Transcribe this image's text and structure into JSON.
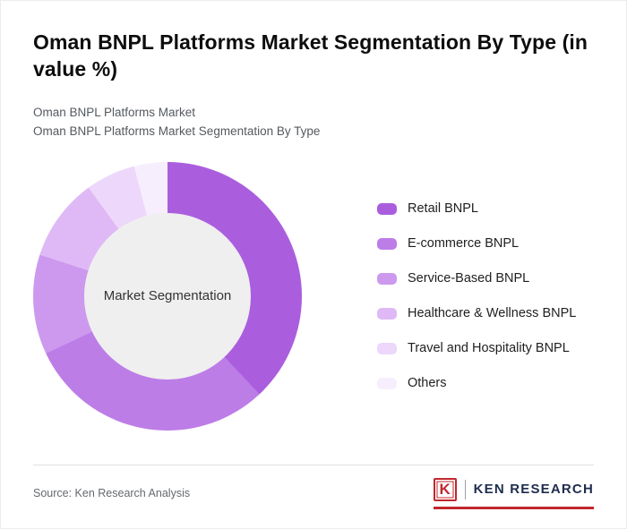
{
  "header": {
    "title": "Oman BNPL Platforms Market Segmentation By Type (in value %)",
    "subtitle1": "Oman BNPL Platforms Market",
    "subtitle2": "Oman BNPL Platforms Market Segmentation By Type"
  },
  "chart_data": {
    "type": "pie",
    "title": "Oman BNPL Platforms Market Segmentation By Type (in value %)",
    "center_label": "Market Segmentation",
    "legend_position": "right",
    "start_angle_deg": 0,
    "direction": "clockwise",
    "series": [
      {
        "name": "Retail BNPL",
        "value": 38,
        "color": "#aa5ede"
      },
      {
        "name": "E-commerce BNPL",
        "value": 30,
        "color": "#bd7de7"
      },
      {
        "name": "Service-Based BNPL",
        "value": 12,
        "color": "#cd99ee"
      },
      {
        "name": "Healthcare & Wellness BNPL",
        "value": 10,
        "color": "#dfb9f5"
      },
      {
        "name": "Travel and Hospitality BNPL",
        "value": 6,
        "color": "#edd7fa"
      },
      {
        "name": "Others",
        "value": 4,
        "color": "#f7eefd"
      }
    ]
  },
  "footer": {
    "source": "Source: Ken Research Analysis",
    "logo_k": "K",
    "logo_text": "KEN RESEARCH"
  },
  "colors": {
    "accent_red": "#c1272d",
    "logo_navy": "#1e2c4e",
    "donut_hole": "#efefef"
  }
}
